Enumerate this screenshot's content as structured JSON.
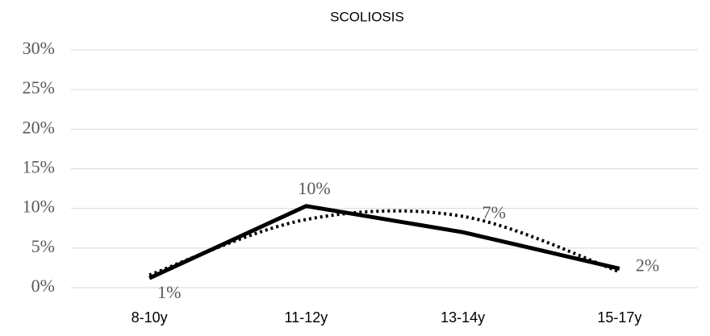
{
  "chart_data": {
    "type": "line",
    "title": "SCOLIOSIS",
    "categories": [
      "8-10y",
      "11-12y",
      "13-14y",
      "15-17y"
    ],
    "series": [
      {
        "color": "#000000",
        "style": "solid",
        "values": [
          1.2,
          10.3,
          7,
          2.4
        ],
        "value_labels": [
          "1%",
          "10%",
          "7%",
          "2%"
        ]
      },
      {
        "color": "#000000",
        "style": "dotted",
        "values": [
          1.6,
          8.6,
          9,
          2
        ]
      }
    ],
    "ylim": [
      0,
      30
    ],
    "yticks": [
      {
        "value": 0,
        "label": "0%"
      },
      {
        "value": 5,
        "label": "5%"
      },
      {
        "value": 10,
        "label": "10%"
      },
      {
        "value": 15,
        "label": "15%"
      },
      {
        "value": 20,
        "label": "20%"
      },
      {
        "value": 25,
        "label": "25%"
      },
      {
        "value": 30,
        "label": "30%"
      }
    ],
    "grid": true
  }
}
